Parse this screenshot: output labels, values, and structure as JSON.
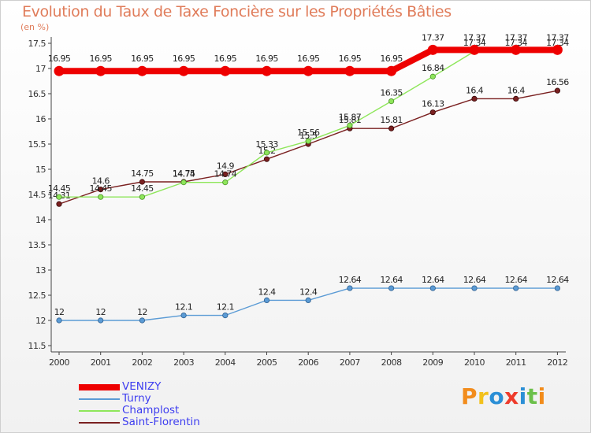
{
  "chart_data": {
    "type": "line",
    "title": "Evolution du Taux de Taxe Foncière sur les Propriétés Bâties",
    "subtitle": "(en %)",
    "categories": [
      "2000",
      "2001",
      "2002",
      "2003",
      "2004",
      "2005",
      "2006",
      "2007",
      "2008",
      "2009",
      "2010",
      "2011",
      "2012"
    ],
    "ylim": [
      11.5,
      17.5
    ],
    "yticks": [
      "11.5",
      "12",
      "12.5",
      "13",
      "13.5",
      "14",
      "14.5",
      "15",
      "15.5",
      "16",
      "16.5",
      "17",
      "17.5"
    ],
    "grid": false,
    "legend_position": "bottom-left",
    "series": [
      {
        "name": "VENIZY",
        "color": "#ee0000",
        "values": [
          16.95,
          16.95,
          16.95,
          16.95,
          16.95,
          16.95,
          16.95,
          16.95,
          16.95,
          17.37,
          17.37,
          17.37,
          17.37
        ],
        "labels": [
          "16.95",
          "16.95",
          "16.95",
          "16.95",
          "16.95",
          "16.95",
          "16.95",
          "16.95",
          "16.95",
          "17.37",
          "17.37",
          "17.37",
          "17.37"
        ]
      },
      {
        "name": "Turny",
        "color": "#5b9bd5",
        "values": [
          12,
          12,
          12,
          12.1,
          12.1,
          12.4,
          12.4,
          12.64,
          12.64,
          12.64,
          12.64,
          12.64,
          12.64
        ],
        "labels": [
          "12",
          "12",
          "12",
          "12.1",
          "12.1",
          "12.4",
          "12.4",
          "12.64",
          "12.64",
          "12.64",
          "12.64",
          "12.64",
          "12.64"
        ]
      },
      {
        "name": "Champlost",
        "color": "#8ee65a",
        "values": [
          14.45,
          14.45,
          14.45,
          14.74,
          14.74,
          15.33,
          15.56,
          15.87,
          16.35,
          16.84,
          17.34,
          17.34,
          17.34
        ],
        "labels": [
          "14.45",
          "14.45",
          "14.45",
          "14.74",
          "14.74",
          "15.33",
          "15.56",
          "15.87",
          "16.35",
          "16.84",
          "17.34",
          "17.34",
          "17.34"
        ]
      },
      {
        "name": "Saint-Florentin",
        "color": "#7a2020",
        "values": [
          14.31,
          14.6,
          14.75,
          14.75,
          14.9,
          15.2,
          15.5,
          15.81,
          15.81,
          16.13,
          16.4,
          16.4,
          16.56
        ],
        "labels": [
          "14.31",
          "14.6",
          "14.75",
          "14.75",
          "14.9",
          "15.2",
          "15.5",
          "15.81",
          "15.81",
          "16.13",
          "16.4",
          "16.4",
          "16.56"
        ]
      }
    ]
  },
  "legend": {
    "items": [
      {
        "label": "VENIZY",
        "color": "#ee0000"
      },
      {
        "label": "Turny",
        "color": "#5b9bd5"
      },
      {
        "label": "Champlost",
        "color": "#8ee65a"
      },
      {
        "label": "Saint-Florentin",
        "color": "#7a2020"
      }
    ]
  },
  "logo": {
    "text": "Proxiti",
    "colors": [
      "#f28c1c",
      "#f2c11c",
      "#2b8fd6",
      "#ee3b2b",
      "#2b8fd6",
      "#6cc04a",
      "#f28c1c"
    ]
  }
}
